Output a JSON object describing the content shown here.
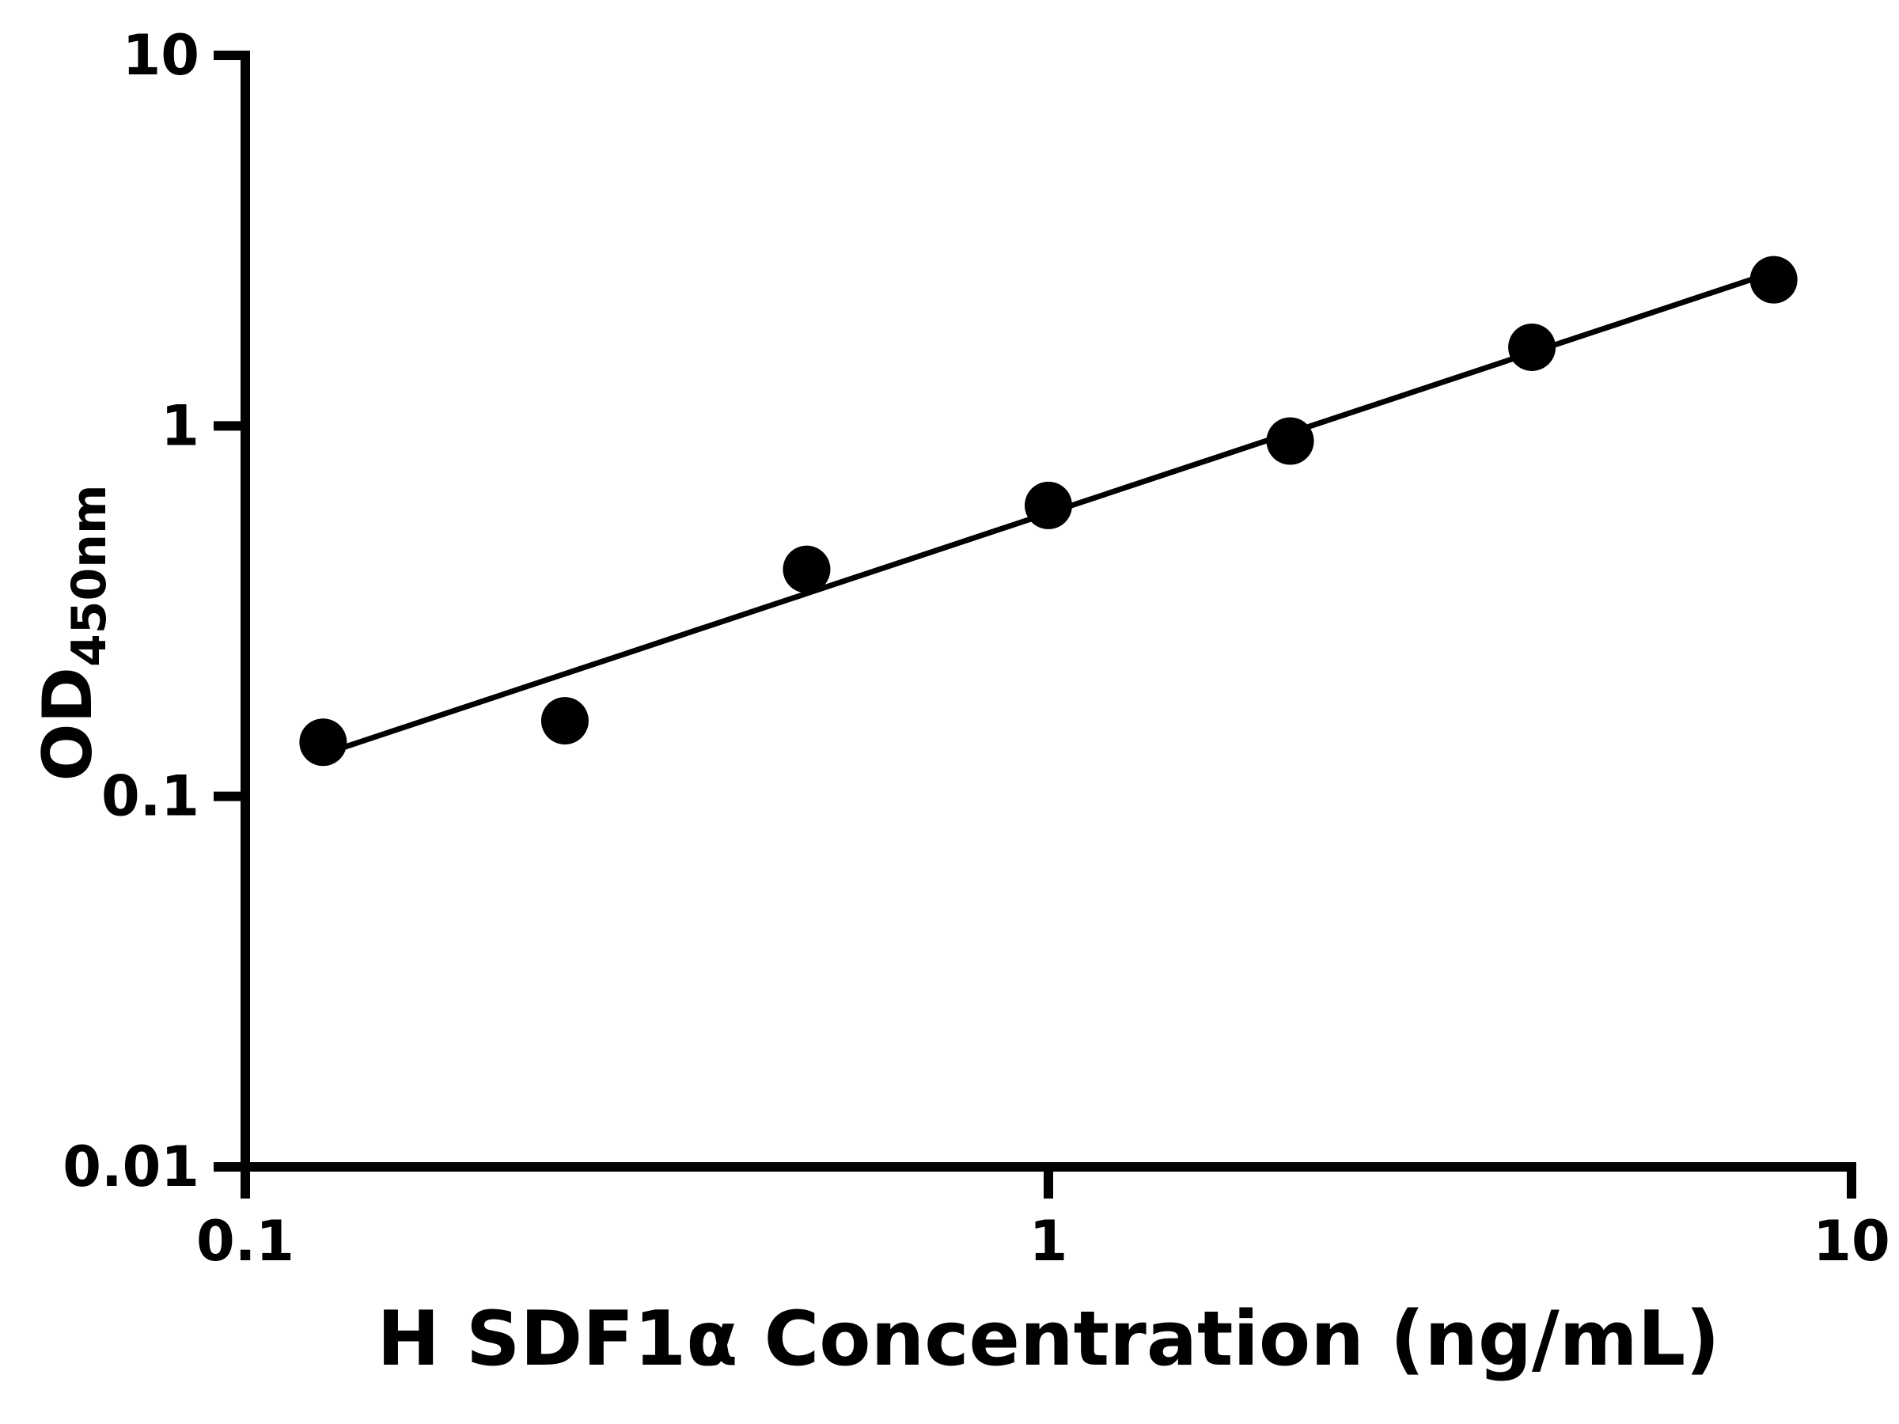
{
  "page": {
    "background": "#ffffff"
  },
  "chart_data": {
    "type": "scatter",
    "scale": "log-log",
    "title": "",
    "xlabel": "H SDF1α Concentration (ng/mL)",
    "ylabel_main": "OD",
    "ylabel_sub": "450nm",
    "xlim": [
      0.1,
      10
    ],
    "ylim": [
      0.01,
      10
    ],
    "x": [
      0.125,
      0.25,
      0.5,
      1,
      2,
      4,
      8
    ],
    "y": [
      0.14,
      0.16,
      0.41,
      0.61,
      0.91,
      1.63,
      2.48
    ],
    "fit_line": {
      "x1": 0.125,
      "y1": 0.13,
      "x2": 8,
      "y2": 2.6
    },
    "xticks": {
      "values": [
        0.1,
        1,
        10
      ],
      "labels": [
        "0.1",
        "1",
        "10"
      ]
    },
    "yticks": {
      "values": [
        0.01,
        0.1,
        1,
        10
      ],
      "labels": [
        "0.01",
        "0.1",
        "1",
        "10"
      ]
    },
    "grid": false,
    "colors": {
      "axis": "#000000",
      "point": "#000000",
      "line": "#000000"
    }
  }
}
